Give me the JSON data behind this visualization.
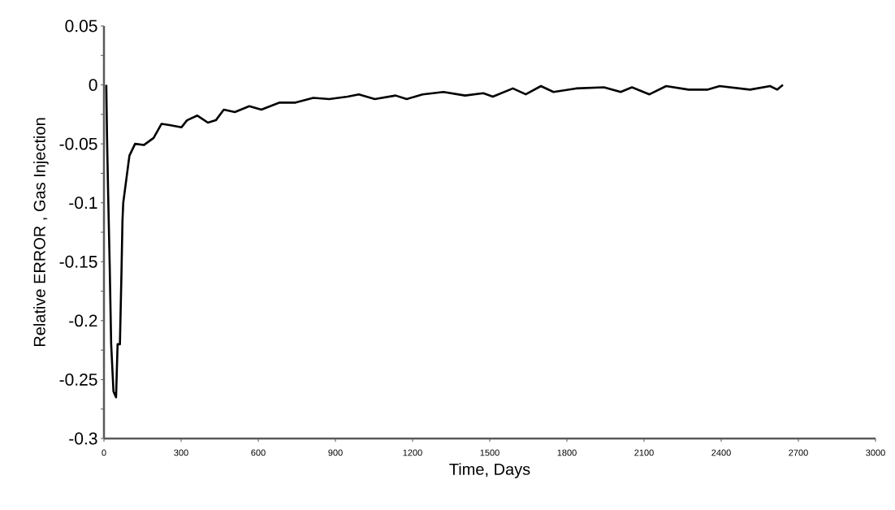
{
  "chart_data": {
    "type": "line",
    "xlabel": "Time, Days",
    "ylabel": "Relative ERROR , Gas Injection",
    "xlim": [
      0,
      3000
    ],
    "xticks": [
      0,
      300,
      600,
      900,
      1200,
      1500,
      1800,
      2100,
      2400,
      2700,
      3000
    ],
    "ylim": [
      -0.3,
      0.05
    ],
    "yticks": [
      -0.3,
      -0.25,
      -0.2,
      -0.15,
      -0.1,
      -0.05,
      0,
      0.05
    ],
    "grid": false,
    "marker": "none",
    "line_style": "solid",
    "series": [
      {
        "color": "#000000",
        "x": [
          9,
          12,
          16,
          22,
          28,
          37,
          47,
          53,
          62,
          68,
          72,
          75,
          84,
          99,
          121,
          155,
          193,
          224,
          255,
          301,
          323,
          363,
          404,
          435,
          466,
          509,
          565,
          612,
          683,
          745,
          814,
          876,
          947,
          991,
          1053,
          1134,
          1177,
          1239,
          1320,
          1404,
          1475,
          1512,
          1590,
          1640,
          1699,
          1748,
          1835,
          1944,
          2009,
          2053,
          2121,
          2186,
          2273,
          2348,
          2394,
          2512,
          2590,
          2618,
          2640
        ],
        "values": [
          0,
          -0.045,
          -0.09,
          -0.15,
          -0.22,
          -0.26,
          -0.265,
          -0.22,
          -0.22,
          -0.16,
          -0.115,
          -0.1,
          -0.085,
          -0.06,
          -0.05,
          -0.051,
          -0.045,
          -0.033,
          -0.034,
          -0.036,
          -0.03,
          -0.026,
          -0.032,
          -0.03,
          -0.021,
          -0.023,
          -0.018,
          -0.021,
          -0.015,
          -0.015,
          -0.011,
          -0.012,
          -0.01,
          -0.008,
          -0.012,
          -0.009,
          -0.012,
          -0.008,
          -0.006,
          -0.009,
          -0.007,
          -0.01,
          -0.003,
          -0.008,
          -0.001,
          -0.006,
          -0.003,
          -0.002,
          -0.006,
          -0.002,
          -0.008,
          -0.001,
          -0.004,
          -0.004,
          -0.001,
          -0.004,
          -0.001,
          -0.004,
          0
        ]
      }
    ]
  }
}
